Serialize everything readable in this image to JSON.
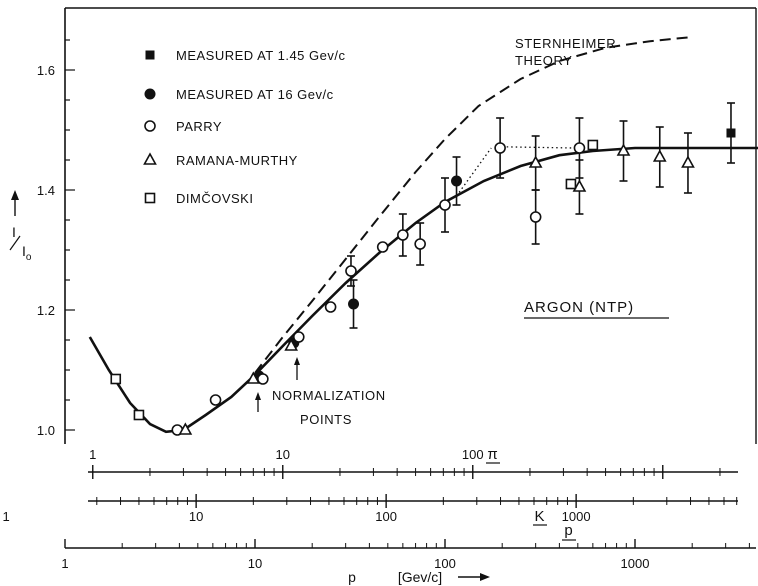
{
  "chart_data": {
    "type": "scatter",
    "x_scale": "log",
    "xlim": [
      1,
      5000
    ],
    "ylim": [
      0.97,
      1.69
    ],
    "yticks": [
      1.0,
      1.2,
      1.4,
      1.6
    ],
    "ytick_labels": [
      "1.0",
      "1.2",
      "1.4",
      "1.6"
    ],
    "ylabel": "I/I₀",
    "xlabel": "p",
    "xlabel_unit": "[Gev/c]",
    "xticks": [
      1,
      10,
      100,
      1000
    ],
    "xtick_labels": [
      "1",
      "10",
      "100",
      "1000"
    ],
    "secondary_axes": [
      {
        "particle": "π",
        "ticks": [
          {
            "p": 1.4,
            "label": "1"
          },
          {
            "p": 14,
            "label": "10"
          },
          {
            "p": 140,
            "label": "100"
          }
        ]
      },
      {
        "particle": "K",
        "ticks": [
          {
            "p": 0.49,
            "label": "1"
          },
          {
            "p": 4.9,
            "label": "10"
          },
          {
            "p": 49,
            "label": "100"
          },
          {
            "p": 490,
            "label": "1000"
          }
        ]
      }
    ],
    "legend": [
      {
        "marker": "filled-square",
        "label": "MEASURED AT 1.45 Gev/c"
      },
      {
        "marker": "filled-circle",
        "label": "MEASURED AT  16 Gev/c"
      },
      {
        "marker": "open-circle",
        "label": "PARRY"
      },
      {
        "marker": "open-triangle",
        "label": "RAMANA-MURTHY"
      },
      {
        "marker": "open-square",
        "label": "DIMČOVSKI"
      }
    ],
    "annotations": {
      "theory": [
        "STERNHEIMER",
        "THEORY"
      ],
      "gas": "ARGON (NTP)",
      "normalization": [
        "NORMALIZATION",
        "POINTS"
      ]
    },
    "series": [
      {
        "name": "MEASURED AT 1.45 Gev/c",
        "marker": "filled-square",
        "x": [
          3200
        ],
        "y": [
          1.495
        ],
        "err": [
          0.05
        ]
      },
      {
        "name": "MEASURED AT  16 Gev/c",
        "marker": "filled-circle",
        "x": [
          10.5,
          16,
          33,
          115
        ],
        "y": [
          1.09,
          1.145,
          1.21,
          1.415
        ],
        "err": [
          0,
          0,
          0.04,
          0.04
        ]
      },
      {
        "name": "PARRY",
        "marker": "open-circle",
        "x": [
          3.9,
          6.2,
          11,
          17,
          25,
          32,
          47,
          60,
          74,
          100,
          195,
          300,
          510
        ],
        "y": [
          1.0,
          1.05,
          1.085,
          1.155,
          1.205,
          1.265,
          1.305,
          1.325,
          1.31,
          1.375,
          1.47,
          1.355,
          1.47
        ],
        "err": [
          0,
          0,
          0,
          0,
          0,
          0.025,
          0,
          0.035,
          0.035,
          0.045,
          0.05,
          0.045,
          0.05
        ]
      },
      {
        "name": "RAMANA-MURTHY",
        "marker": "open-triangle",
        "x": [
          4.3,
          9.8,
          15.5,
          300,
          510,
          870,
          1350,
          1900
        ],
        "y": [
          1.0,
          1.085,
          1.14,
          1.445,
          1.405,
          1.465,
          1.455,
          1.445
        ],
        "err": [
          0,
          0,
          0,
          0.045,
          0.045,
          0.05,
          0.05,
          0.05
        ]
      },
      {
        "name": "DIMČOVSKI",
        "marker": "open-square",
        "x": [
          1.85,
          2.45,
          460,
          600
        ],
        "y": [
          1.085,
          1.025,
          1.41,
          1.475
        ],
        "err": [
          0,
          0,
          0,
          0
        ]
      },
      {
        "name": "curve-solid",
        "line": "solid",
        "x": [
          1.35,
          1.7,
          2.2,
          2.8,
          3.4,
          4.2,
          5.5,
          7.5,
          10,
          14,
          20,
          30,
          45,
          70,
          100,
          160,
          250,
          400,
          600,
          1000,
          2000,
          4500
        ],
        "y": [
          1.155,
          1.1,
          1.045,
          1.01,
          0.997,
          1.0,
          1.025,
          1.055,
          1.092,
          1.14,
          1.19,
          1.245,
          1.295,
          1.345,
          1.38,
          1.415,
          1.44,
          1.458,
          1.465,
          1.47,
          1.47,
          1.47
        ]
      },
      {
        "name": "curve-dashed",
        "line": "dashed",
        "x": [
          10,
          14,
          20,
          30,
          45,
          70,
          100,
          150,
          250,
          400,
          700,
          1200,
          2000
        ],
        "y": [
          1.095,
          1.155,
          1.215,
          1.285,
          1.355,
          1.43,
          1.485,
          1.54,
          1.585,
          1.615,
          1.637,
          1.648,
          1.655
        ]
      },
      {
        "name": "curve-dotted-1",
        "line": "dotted",
        "x": [
          115,
          175
        ],
        "y": [
          1.39,
          1.47
        ]
      },
      {
        "name": "curve-dotted-2",
        "line": "dotted",
        "x": [
          200,
          480
        ],
        "y": [
          1.472,
          1.47
        ]
      }
    ]
  }
}
